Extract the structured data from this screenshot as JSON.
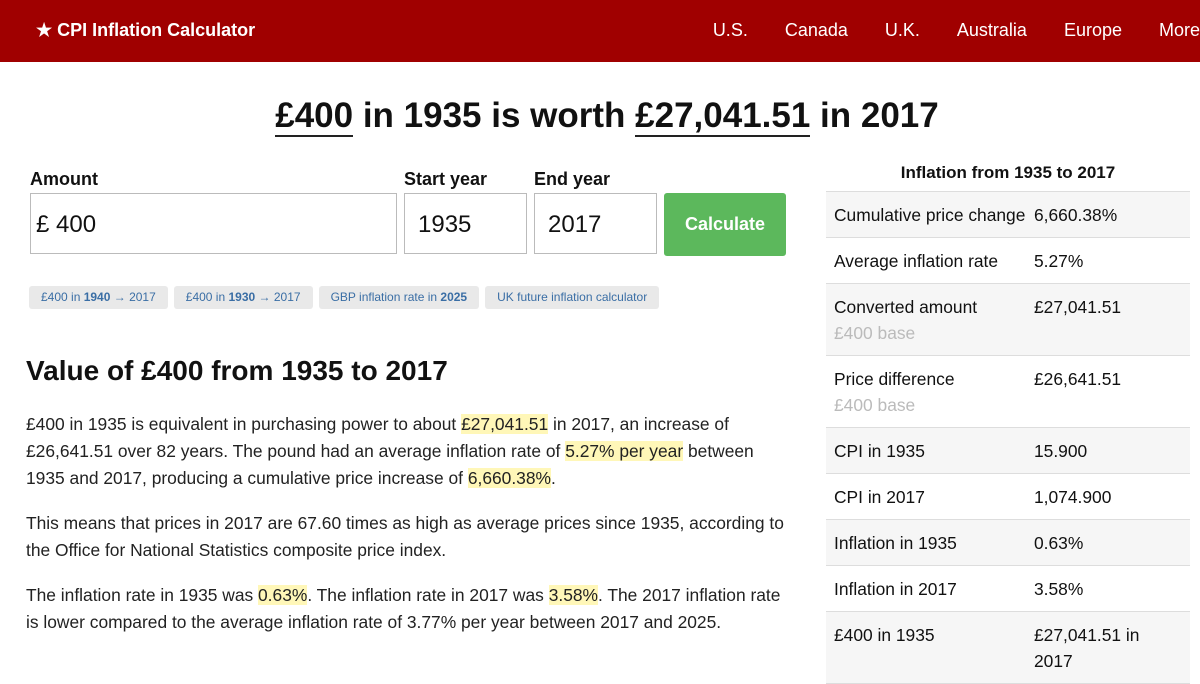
{
  "header": {
    "brand": "★ CPI Inflation Calculator",
    "nav": [
      "U.S.",
      "Canada",
      "U.K.",
      "Australia",
      "Europe",
      "More"
    ]
  },
  "headline": {
    "amount": "£400",
    "mid": " in 1935 is worth ",
    "result": "£27,041.51",
    "end": " in 2017"
  },
  "form": {
    "amount_label": "Amount",
    "currency": "£",
    "amount": "400",
    "start_label": "Start year",
    "start": "1935",
    "end_label": "End year",
    "end": "2017",
    "button": "Calculate"
  },
  "chips": [
    {
      "pre": "£400 in ",
      "bold": "1940",
      "post": " → 2017"
    },
    {
      "pre": "£400 in ",
      "bold": "1930",
      "post": " → 2017"
    },
    {
      "pre": "GBP inflation rate in ",
      "bold": "2025"
    },
    {
      "pre": "UK future inflation calculator"
    }
  ],
  "section_title": "Value of £400 from 1935 to 2017",
  "paragraphs": [
    [
      {
        "text": "£400 in 1935 is equivalent in purchasing power to about "
      },
      {
        "text": "£27,041.51",
        "highlight": true
      },
      {
        "text": " in 2017, an increase of £26,641.51 over 82 years. The pound had an average inflation rate of "
      },
      {
        "text": "5.27% per year",
        "highlight": true
      },
      {
        "text": " between 1935 and 2017, producing a cumulative price increase of "
      },
      {
        "text": "6,660.38%",
        "highlight": true
      },
      {
        "text": "."
      }
    ],
    [
      {
        "text": "This means that prices in 2017 are 67.60 times as high as average prices since 1935, according to the Office for National Statistics composite price index."
      }
    ],
    [
      {
        "text": "The inflation rate in 1935 was "
      },
      {
        "text": "0.63%",
        "highlight": true
      },
      {
        "text": ". The inflation rate in 2017 was "
      },
      {
        "text": "3.58%",
        "highlight": true
      },
      {
        "text": ". The 2017 inflation rate is lower compared to the average inflation rate of 3.77% per year between 2017 and 2025."
      }
    ]
  ],
  "sidebar": {
    "title": "Inflation from 1935 to 2017",
    "rows": [
      {
        "label": "Cumulative price change",
        "value": "6,660.38%"
      },
      {
        "label": "Average inflation rate",
        "value": "5.27%"
      },
      {
        "label": "Converted amount",
        "sub": "£400 base",
        "value": "£27,041.51"
      },
      {
        "label": "Price difference",
        "sub": "£400 base",
        "value": "£26,641.51"
      },
      {
        "label": "CPI in 1935",
        "value": "15.900"
      },
      {
        "label": "CPI in 2017",
        "value": "1,074.900"
      },
      {
        "label": "Inflation in 1935",
        "value": "0.63%"
      },
      {
        "label": "Inflation in 2017",
        "value": "3.58%"
      },
      {
        "label": "£400 in 1935",
        "value": "£27,041.51 in 2017"
      }
    ]
  }
}
